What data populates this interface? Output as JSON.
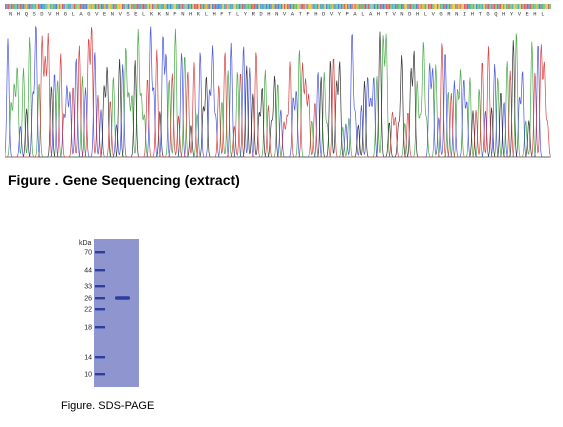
{
  "sequence_panel": {
    "peptide_sequence": "NHQSDVHGLAGVENVSELKKNFNHKLHFTLYRDHNVATFHDVYPALAHTVNDHLVGRNIHTGQHYVEHL",
    "trace_colors": {
      "A": "#2a9a2a",
      "C": "#2a3ad8",
      "G": "#111111",
      "T": "#d22020"
    },
    "band_colors": [
      "#3cb34a",
      "#1e6cc8",
      "#e0b010",
      "#d23b3b",
      "#2aa3a3"
    ]
  },
  "captions": {
    "gene_sequencing": "Figure . Gene Sequencing (extract)",
    "sds_page": "Figure. SDS-PAGE"
  },
  "gel": {
    "unit_label": "kDa",
    "ladder": [
      "70",
      "44",
      "33",
      "26",
      "22",
      "18",
      "14",
      "10"
    ],
    "sample_band_kda": "26",
    "background_color": "#8f95cf",
    "band_color": "#2f3d9e"
  }
}
